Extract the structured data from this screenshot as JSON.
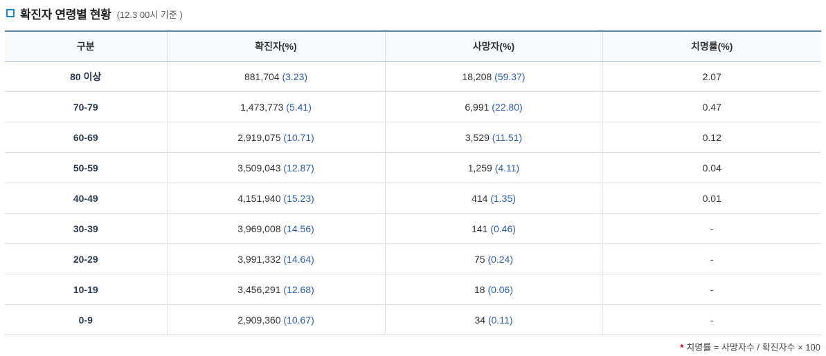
{
  "section": {
    "title": "확진자 연령별 현황",
    "subtitle": "(12.3 00시 기준 )"
  },
  "table": {
    "headers": [
      "구분",
      "확진자(%)",
      "사망자(%)",
      "치명률(%)"
    ],
    "rows": [
      {
        "age": "80 이상",
        "cases": "881,704",
        "cases_pct": "(3.23)",
        "deaths": "18,208",
        "deaths_pct": "(59.37)",
        "cfr": "2.07"
      },
      {
        "age": "70-79",
        "cases": "1,473,773",
        "cases_pct": "(5.41)",
        "deaths": "6,991",
        "deaths_pct": "(22.80)",
        "cfr": "0.47"
      },
      {
        "age": "60-69",
        "cases": "2,919,075",
        "cases_pct": "(10.71)",
        "deaths": "3,529",
        "deaths_pct": "(11.51)",
        "cfr": "0.12"
      },
      {
        "age": "50-59",
        "cases": "3,509,043",
        "cases_pct": "(12.87)",
        "deaths": "1,259",
        "deaths_pct": "(4.11)",
        "cfr": "0.04"
      },
      {
        "age": "40-49",
        "cases": "4,151,940",
        "cases_pct": "(15.23)",
        "deaths": "414",
        "deaths_pct": "(1.35)",
        "cfr": "0.01"
      },
      {
        "age": "30-39",
        "cases": "3,969,008",
        "cases_pct": "(14.56)",
        "deaths": "141",
        "deaths_pct": "(0.46)",
        "cfr": "-"
      },
      {
        "age": "20-29",
        "cases": "3,991,332",
        "cases_pct": "(14.64)",
        "deaths": "75",
        "deaths_pct": "(0.24)",
        "cfr": "-"
      },
      {
        "age": "10-19",
        "cases": "3,456,291",
        "cases_pct": "(12.68)",
        "deaths": "18",
        "deaths_pct": "(0.06)",
        "cfr": "-"
      },
      {
        "age": "0-9",
        "cases": "2,909,360",
        "cases_pct": "(10.67)",
        "deaths": "34",
        "deaths_pct": "(0.11)",
        "cfr": "-"
      }
    ]
  },
  "footnote": {
    "marker": "*",
    "text": "치명률 = 사망자수 / 확진자수 × 100"
  },
  "colors": {
    "accent": "#1a87c9",
    "header_border": "#5f82a8",
    "percent_text": "#2f5ea8",
    "footnote_marker": "#d0021b"
  }
}
